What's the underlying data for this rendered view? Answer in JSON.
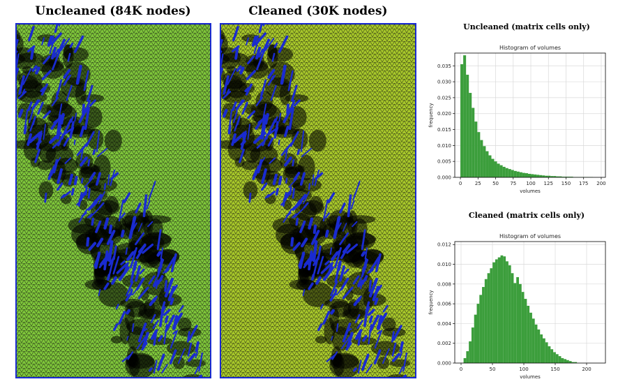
{
  "mesh_panels": [
    {
      "title": "Uncleaned (84K nodes)"
    },
    {
      "title": "Cleaned (30K nodes)"
    }
  ],
  "histogram_headings": [
    "Uncleaned (matrix cells only)",
    "Cleaned (matrix cells only)"
  ],
  "colors": {
    "mesh_green": "#7ec53a",
    "mesh_yellow_green": "#a7c72a",
    "fracture_blue": "#1a2bd0",
    "bar_green": "#3c9e3c"
  },
  "chart_data": [
    {
      "type": "bar",
      "title": "Histogram of volumes",
      "xlabel": "volumes",
      "ylabel": "frequency",
      "xlim": [
        -8,
        206
      ],
      "ylim": [
        0,
        0.039
      ],
      "xticks": [
        0,
        25,
        50,
        75,
        100,
        125,
        150,
        175,
        200
      ],
      "yticks": [
        0.0,
        0.005,
        0.01,
        0.015,
        0.02,
        0.025,
        0.03,
        0.035
      ],
      "ytick_labels": [
        "0.000",
        "0.005",
        "0.010",
        "0.015",
        "0.020",
        "0.025",
        "0.030",
        "0.035"
      ],
      "grid": true,
      "bin_width": 4,
      "bin_start": 0,
      "values": [
        0.0355,
        0.0383,
        0.0322,
        0.0265,
        0.0218,
        0.0175,
        0.0142,
        0.0117,
        0.0098,
        0.0082,
        0.0069,
        0.0058,
        0.005,
        0.0043,
        0.0038,
        0.0033,
        0.0029,
        0.0026,
        0.0023,
        0.002,
        0.0018,
        0.0016,
        0.0014,
        0.0013,
        0.0011,
        0.001,
        0.0009,
        0.0008,
        0.0007,
        0.0006,
        0.0005,
        0.0005,
        0.0004,
        0.0004,
        0.0003,
        0.0003,
        0.0002,
        0.0002,
        0.0002,
        0.0002,
        0.0001,
        0.0001,
        0.0001,
        0.0001,
        0.0001,
        0.0001,
        0.0001,
        0.0,
        0.0,
        0.0
      ]
    },
    {
      "type": "bar",
      "title": "Histogram of volumes",
      "xlabel": "volumes",
      "ylabel": "frequency",
      "xlim": [
        -10,
        230
      ],
      "ylim": [
        0,
        0.0123
      ],
      "xticks": [
        0,
        50,
        100,
        150,
        200
      ],
      "yticks": [
        0.0,
        0.002,
        0.004,
        0.006,
        0.008,
        0.01,
        0.012
      ],
      "ytick_labels": [
        "0.000",
        "0.002",
        "0.004",
        "0.006",
        "0.008",
        "0.010",
        "0.012"
      ],
      "grid": true,
      "bin_width": 4.2,
      "bin_start": 4,
      "values": [
        0.0005,
        0.0012,
        0.0022,
        0.0036,
        0.0049,
        0.006,
        0.0069,
        0.0077,
        0.0085,
        0.0091,
        0.0096,
        0.0102,
        0.0105,
        0.0107,
        0.0109,
        0.0108,
        0.0103,
        0.0099,
        0.0091,
        0.0081,
        0.0087,
        0.008,
        0.0072,
        0.0065,
        0.0058,
        0.0051,
        0.0045,
        0.0039,
        0.0034,
        0.0029,
        0.0025,
        0.0021,
        0.0017,
        0.0014,
        0.0011,
        0.0009,
        0.0007,
        0.0005,
        0.0004,
        0.0003,
        0.0002,
        0.0001,
        0.0001
      ]
    }
  ]
}
